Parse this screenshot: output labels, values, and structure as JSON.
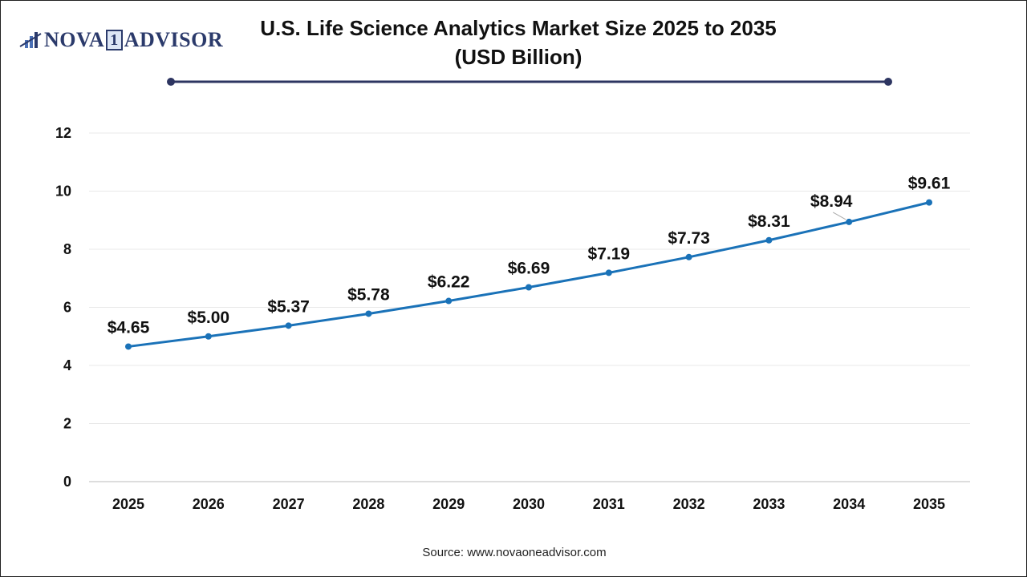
{
  "logo": {
    "text_left": "NOVA",
    "text_mid": "1",
    "text_right": "ADVISOR"
  },
  "source": "Source: www.novaoneadvisor.com",
  "colors": {
    "line": "#1a72b8",
    "title_rule": "#2d3561",
    "grid": "#e8e8e8"
  },
  "chart_data": {
    "type": "line",
    "title": "U.S. Life Science Analytics Market Size 2025 to 2035",
    "subtitle": "(USD Billion)",
    "xlabel": "",
    "ylabel": "",
    "categories": [
      "2025",
      "2026",
      "2027",
      "2028",
      "2029",
      "2030",
      "2031",
      "2032",
      "2033",
      "2034",
      "2035"
    ],
    "values": [
      4.65,
      5.0,
      5.37,
      5.78,
      6.22,
      6.69,
      7.19,
      7.73,
      8.31,
      8.94,
      9.61
    ],
    "data_labels": [
      "$4.65",
      "$5.00",
      "$5.37",
      "$5.78",
      "$6.22",
      "$6.69",
      "$7.19",
      "$7.73",
      "$8.31",
      "$8.94",
      "$9.61"
    ],
    "ylim": [
      0,
      12
    ],
    "yticks": [
      "0",
      "2",
      "4",
      "6",
      "8",
      "10",
      "12"
    ],
    "grid": true,
    "legend": "none"
  }
}
